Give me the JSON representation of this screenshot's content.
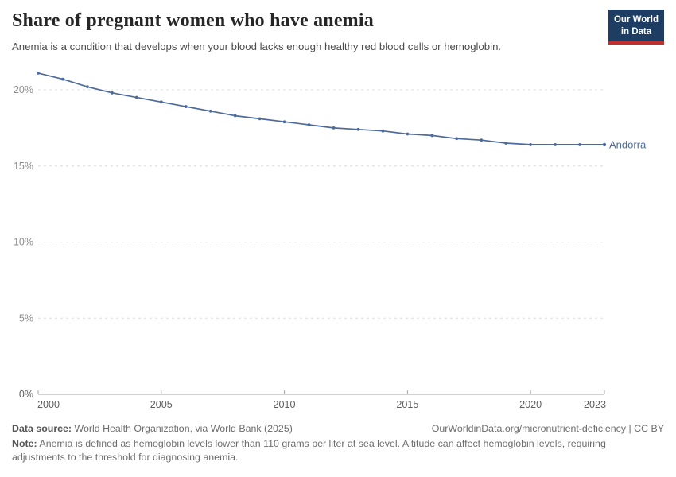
{
  "header": {
    "title": "Share of pregnant women who have anemia",
    "subtitle": "Anemia is a condition that develops when your blood lacks enough healthy red blood cells or hemoglobin.",
    "logo_line1": "Our World",
    "logo_line2": "in Data",
    "logo_bg_color": "#1d3d63",
    "logo_accent_color": "#c0302f"
  },
  "chart_data": {
    "type": "line",
    "title": "Share of pregnant women who have anemia",
    "x": [
      2000,
      2001,
      2002,
      2003,
      2004,
      2005,
      2006,
      2007,
      2008,
      2009,
      2010,
      2011,
      2012,
      2013,
      2014,
      2015,
      2016,
      2017,
      2018,
      2019,
      2020,
      2021,
      2022,
      2023
    ],
    "series": [
      {
        "name": "Andorra",
        "color": "#4C6A9C",
        "values": [
          21.1,
          20.7,
          20.2,
          19.8,
          19.5,
          19.2,
          18.9,
          18.6,
          18.3,
          18.1,
          17.9,
          17.7,
          17.5,
          17.4,
          17.3,
          17.1,
          17.0,
          16.8,
          16.7,
          16.5,
          16.4,
          16.4,
          16.4,
          16.4
        ]
      }
    ],
    "xlim": [
      2000,
      2023
    ],
    "ylim": [
      0,
      21.5
    ],
    "x_ticks": [
      2000,
      2005,
      2010,
      2015,
      2020,
      2023
    ],
    "y_ticks": [
      0,
      5,
      10,
      15,
      20
    ],
    "y_tick_suffix": "%",
    "grid": "horizontal-dashed",
    "grid_color": "#dcdcdc",
    "axis_color": "#a3a3a3",
    "y_label_color": "#8c8c8c",
    "x_label_color": "#5e5e5e",
    "legend_position": "end-of-line"
  },
  "footer": {
    "datasource_label": "Data source:",
    "datasource_text": " World Health Organization, via World Bank (2025)",
    "link_text": "OurWorldinData.org/micronutrient-deficiency | CC BY",
    "note_label": "Note:",
    "note_text": " Anemia is defined as hemoglobin levels lower than 110 grams per liter at sea level. Altitude can affect hemoglobin levels, requiring adjustments to the threshold for diagnosing anemia."
  }
}
